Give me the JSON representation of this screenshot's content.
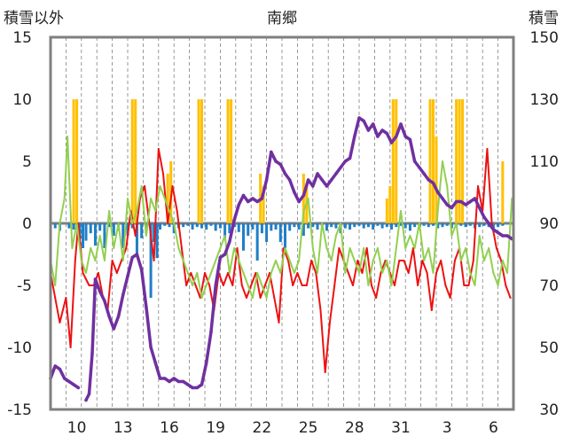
{
  "chart_data": {
    "type": "line",
    "title": "南郷",
    "left_axis": {
      "label": "積雪以外",
      "ylim": [
        -15,
        15
      ],
      "ticks": [
        15,
        10,
        5,
        0,
        -5,
        -10,
        -15
      ],
      "tick_labels": [
        "15",
        "10",
        "5",
        "0",
        "-5",
        "-10",
        "-15"
      ]
    },
    "right_axis": {
      "label": "積雪",
      "ylim": [
        30,
        150
      ],
      "ticks": [
        150,
        130,
        110,
        90,
        70,
        50,
        30
      ],
      "tick_labels": [
        "150",
        "130",
        "110",
        "90",
        "70",
        "50",
        "30"
      ]
    },
    "x_axis": {
      "range": [
        0,
        30
      ],
      "ticks": [
        1.7,
        4.7,
        7.7,
        10.7,
        13.7,
        16.7,
        19.7,
        22.7,
        25.7,
        28.7
      ],
      "tick_labels": [
        "10",
        "13",
        "16",
        "19",
        "22",
        "25",
        "28",
        "31",
        "3",
        "6"
      ],
      "minor_count": 30
    },
    "grid": "vertical-dashed",
    "legend": "none",
    "colors": {
      "frame": "#7f7f7f",
      "zero_line": "#7f7f7f",
      "grid": "#808080",
      "red_series": "#ee1111",
      "green_series": "#92d050",
      "purple_series": "#7030a0",
      "blue_series": "#1f7fc8",
      "yellow_series": "#ffc000"
    },
    "series": [
      {
        "axis": "left",
        "kind": "line",
        "color": "#ee1111",
        "width": 2,
        "x": [
          0,
          0.3,
          0.6,
          1.0,
          1.3,
          1.6,
          1.8,
          2.1,
          2.5,
          2.8,
          3.1,
          3.4,
          3.7,
          4.0,
          4.3,
          4.6,
          4.9,
          5.2,
          5.5,
          5.8,
          6.1,
          6.4,
          6.7,
          7.0,
          7.3,
          7.6,
          7.9,
          8.2,
          8.5,
          8.8,
          9.1,
          9.4,
          9.7,
          10.0,
          10.3,
          10.6,
          10.9,
          11.2,
          11.5,
          11.8,
          12.1,
          12.4,
          12.7,
          13.0,
          13.3,
          13.6,
          13.9,
          14.2,
          14.5,
          14.8,
          15.1,
          15.4,
          15.7,
          16.0,
          16.3,
          16.6,
          16.9,
          17.2,
          17.5,
          17.8,
          18.1,
          18.4,
          18.7,
          19.0,
          19.3,
          19.6,
          19.9,
          20.2,
          20.5,
          20.8,
          21.1,
          21.4,
          21.7,
          22.0,
          22.3,
          22.6,
          22.9,
          23.2,
          23.5,
          23.8,
          24.1,
          24.4,
          24.7,
          25.0,
          25.3,
          25.6,
          25.9,
          26.2,
          26.5,
          26.8,
          27.1,
          27.4,
          27.7,
          28.0,
          28.3,
          28.6,
          28.9,
          29.2,
          29.5,
          29.8
        ],
        "values": [
          -4,
          -6,
          -8,
          -6,
          -10,
          -3,
          0,
          -4,
          -5,
          -5,
          -4,
          -6,
          -7,
          -3,
          -4,
          -3,
          -2,
          1,
          -1,
          2,
          3,
          0,
          -3,
          6,
          4,
          0,
          3,
          1,
          -2,
          -5,
          -4,
          -5,
          -6,
          -4,
          -5,
          -7,
          -4,
          -5,
          -4,
          -5,
          -2,
          -5,
          -6,
          -5,
          -4,
          -6,
          -5,
          -4,
          -6,
          -8,
          -2,
          -3,
          -5,
          -4,
          -5,
          -5,
          -3,
          -4,
          -7,
          -12,
          -8,
          -5,
          -2,
          -3,
          -4,
          -5,
          -3,
          -4,
          -2,
          -5,
          -6,
          -4,
          -3,
          -4,
          -5,
          -3,
          -3,
          -4,
          -2,
          -5,
          -3,
          -4,
          -7,
          -4,
          -3,
          -5,
          -6,
          -3,
          -2,
          -5,
          -5,
          -3,
          3,
          1,
          6,
          0,
          -2,
          -3,
          -5,
          -6
        ]
      },
      {
        "axis": "left",
        "kind": "line",
        "color": "#92d050",
        "width": 2,
        "x": [
          0,
          0.3,
          0.6,
          0.9,
          1.1,
          1.4,
          1.7,
          2.0,
          2.3,
          2.6,
          2.9,
          3.2,
          3.5,
          3.8,
          4.1,
          4.4,
          4.7,
          5.0,
          5.3,
          5.6,
          5.9,
          6.2,
          6.5,
          6.8,
          7.1,
          7.4,
          7.7,
          8.0,
          8.3,
          8.6,
          8.9,
          9.2,
          9.5,
          9.8,
          10.1,
          10.4,
          10.7,
          11.0,
          11.3,
          11.6,
          11.9,
          12.2,
          12.5,
          12.8,
          13.1,
          13.4,
          13.7,
          14.0,
          14.3,
          14.6,
          14.9,
          15.2,
          15.5,
          15.8,
          16.1,
          16.4,
          16.7,
          17.0,
          17.3,
          17.6,
          17.9,
          18.2,
          18.5,
          18.8,
          19.1,
          19.4,
          19.7,
          20.0,
          20.3,
          20.6,
          20.9,
          21.2,
          21.5,
          21.8,
          22.1,
          22.4,
          22.7,
          23.0,
          23.3,
          23.6,
          23.9,
          24.2,
          24.5,
          24.8,
          25.1,
          25.4,
          25.7,
          26.0,
          26.3,
          26.6,
          26.9,
          27.2,
          27.5,
          27.8,
          28.1,
          28.4,
          28.7,
          29.0,
          29.3,
          29.6,
          29.9
        ],
        "values": [
          -3,
          -5,
          0,
          2,
          7,
          -2,
          0,
          -3,
          -4,
          -2,
          -3,
          -1,
          -3,
          1,
          -2,
          0,
          -3,
          2,
          0,
          1,
          3,
          -1,
          2,
          1,
          3,
          2,
          1,
          0,
          -2,
          -3,
          -4,
          -5,
          -4,
          -6,
          -5,
          -4,
          -3,
          -2,
          -1,
          -4,
          -2,
          -3,
          -4,
          -5,
          -6,
          -4,
          -5,
          -6,
          -4,
          -3,
          -4,
          -2,
          -3,
          -4,
          -3,
          1,
          2,
          -2,
          -4,
          0,
          -2,
          -3,
          -1,
          0,
          -4,
          -2,
          -3,
          -4,
          -2,
          -5,
          -3,
          -2,
          -4,
          -3,
          -5,
          -2,
          1,
          -2,
          -1,
          -2,
          0,
          -3,
          -2,
          -4,
          1,
          5,
          3,
          -1,
          0,
          -3,
          -2,
          -4,
          -5,
          -1,
          -3,
          -2,
          -4,
          -5,
          -3,
          -4,
          2
        ]
      },
      {
        "axis": "right",
        "kind": "line",
        "color": "#7030a0",
        "width": 3.5,
        "segments": [
          {
            "x": [
              0,
              0.3,
              0.6,
              0.9,
              1.2,
              1.5,
              1.8
            ],
            "values": [
              40,
              44,
              43,
              40,
              39,
              38,
              37
            ]
          },
          {
            "x": [
              2.3,
              2.5,
              2.7,
              2.9,
              3.2,
              3.5,
              3.8,
              4.1,
              4.4,
              4.7,
              5.0,
              5.3,
              5.6,
              5.9,
              6.2,
              6.5,
              6.8,
              7.1,
              7.4,
              7.7,
              8.0,
              8.3,
              8.6,
              8.9,
              9.2,
              9.5,
              9.8,
              10.1,
              10.4,
              10.7,
              11.0,
              11.3,
              11.6,
              11.9,
              12.2,
              12.5,
              12.8,
              13.1,
              13.4,
              13.7,
              14.0,
              14.3,
              14.6,
              14.9,
              15.2,
              15.5,
              15.8,
              16.1,
              16.4,
              16.7,
              17.0,
              17.3,
              17.6,
              17.9,
              18.2,
              18.5,
              18.8,
              19.1,
              19.4,
              19.7,
              20.0,
              20.3,
              20.6,
              20.9,
              21.2,
              21.5,
              21.8,
              22.1,
              22.4,
              22.7,
              23.0,
              23.3,
              23.6,
              23.9,
              24.2,
              24.5,
              24.8,
              25.1,
              25.4,
              25.7,
              26.0,
              26.3,
              26.6,
              26.9,
              27.2,
              27.5,
              27.8,
              28.1,
              28.4,
              28.7,
              29.0,
              29.3,
              29.6,
              29.9
            ],
            "values": [
              33,
              35,
              48,
              72,
              68,
              65,
              60,
              56,
              60,
              67,
              73,
              79,
              80,
              75,
              63,
              50,
              45,
              40,
              40,
              39,
              40,
              39,
              39,
              38,
              37,
              37,
              38,
              45,
              55,
              70,
              79,
              80,
              84,
              91,
              96,
              99,
              97,
              98,
              97,
              98,
              104,
              113,
              110,
              109,
              106,
              104,
              100,
              97,
              99,
              104,
              102,
              106,
              104,
              102,
              104,
              106,
              108,
              110,
              111,
              118,
              124,
              123,
              120,
              122,
              118,
              120,
              119,
              116,
              118,
              122,
              118,
              117,
              110,
              108,
              106,
              104,
              103,
              100,
              98,
              96,
              95,
              97,
              97,
              96,
              97,
              98,
              95,
              92,
              90,
              88,
              87,
              86,
              86,
              85
            ]
          }
        ]
      },
      {
        "axis": "left",
        "kind": "bars-from-zero",
        "color": "#1f7fc8",
        "x": [
          0.3,
          0.6,
          1.2,
          1.5,
          1.9,
          2.1,
          2.3,
          2.6,
          2.9,
          3.2,
          3.5,
          3.8,
          4.1,
          4.4,
          4.7,
          5.0,
          5.3,
          5.6,
          5.9,
          6.2,
          6.5,
          6.7,
          6.9,
          7.1,
          7.4,
          7.7,
          8.0,
          8.3,
          8.6,
          8.9,
          9.2,
          9.5,
          9.8,
          10.1,
          10.4,
          10.7,
          11.0,
          11.3,
          11.6,
          11.9,
          12.2,
          12.5,
          12.8,
          13.1,
          13.4,
          13.7,
          14.0,
          14.3,
          14.6,
          14.9,
          15.2,
          15.5,
          15.8,
          16.1,
          16.4,
          16.7,
          17.0,
          17.3,
          17.6,
          17.9,
          18.2,
          18.5,
          18.8,
          19.1,
          19.4,
          19.7,
          20.0,
          20.3,
          20.6,
          20.9,
          21.2,
          21.5,
          21.8,
          22.1,
          22.4,
          22.7,
          23.0,
          23.3,
          23.6,
          23.9,
          24.2,
          24.5,
          24.8,
          25.1,
          25.4,
          25.7,
          26.0,
          26.3,
          26.6,
          26.9,
          27.2,
          27.5,
          27.8,
          28.1,
          28.4,
          28.7,
          29.0,
          29.3
        ],
        "values": [
          -0.4,
          -0.6,
          -0.4,
          -0.5,
          -1.2,
          -2,
          -1.4,
          -0.8,
          -1.8,
          -0.6,
          -2,
          -0.3,
          -1,
          -0.6,
          -2,
          -1,
          -0.4,
          -2.5,
          -1.2,
          -0.8,
          -6,
          -1.5,
          -2.8,
          -0.5,
          -0.2,
          -0.3,
          -0.8,
          -0.4,
          -0.3,
          -0.2,
          -0.5,
          -0.3,
          -0.4,
          -0.5,
          -0.2,
          -0.6,
          -0.4,
          -1.2,
          -0.8,
          -0.3,
          -0.7,
          -2.2,
          -1,
          -0.5,
          -3,
          -0.8,
          -1.5,
          -0.6,
          -0.5,
          -1.5,
          -2,
          -0.6,
          -0.3,
          -0.5,
          -1,
          -0.4,
          -0.3,
          -0.5,
          -0.2,
          -0.6,
          -0.3,
          -0.4,
          -0.8,
          -0.4,
          -0.5,
          -0.3,
          -0.2,
          -0.4,
          -0.3,
          -0.5,
          -0.2,
          -0.4,
          -0.3,
          -0.5,
          -0.3,
          -0.2,
          -0.4,
          -0.6,
          -0.3,
          -0.5,
          -0.2,
          -0.3,
          -0.2,
          -0.4,
          -0.3,
          -0.2,
          -0.4,
          -0.3,
          -0.2,
          -0.3,
          -0.2,
          -0.4,
          -0.3,
          -0.2,
          -0.3,
          -0.4,
          -0.3,
          -0.2
        ]
      },
      {
        "axis": "left",
        "kind": "bars-from-zero",
        "color": "#ffc000",
        "x": [
          1.5,
          1.7,
          5.3,
          5.5,
          7.6,
          7.8,
          9.6,
          9.8,
          11.5,
          11.7,
          13.6,
          13.8,
          16.4,
          16.6,
          21.8,
          22.0,
          22.2,
          22.4,
          24.6,
          24.8,
          25.0,
          26.3,
          26.5,
          26.7,
          29.3
        ],
        "values": [
          10,
          10,
          10,
          10,
          4,
          5,
          10,
          10,
          10,
          10,
          4,
          3,
          4,
          3,
          2,
          3,
          10,
          10,
          10,
          10,
          7,
          10,
          10,
          10,
          5
        ]
      }
    ]
  }
}
